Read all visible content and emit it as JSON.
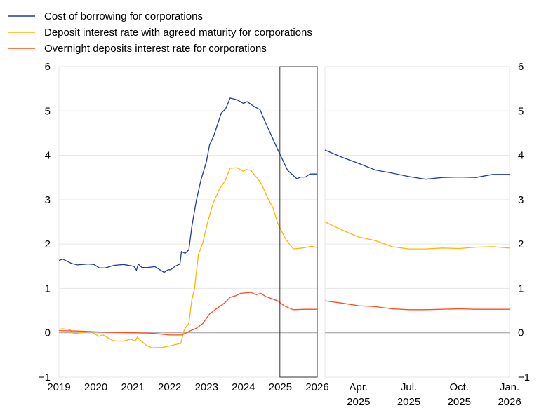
{
  "chart_data": {
    "type": "line",
    "legend_placement": "top-left",
    "colors": {
      "blue": "#1f3c9e",
      "yellow": "#ffb400",
      "red": "#ff4b1f",
      "grid": "#e6e6e6",
      "zero": "#9a9a9a"
    },
    "ylim": [
      -1,
      6
    ],
    "yticks": [
      "6",
      "5",
      "4",
      "3",
      "2",
      "1",
      "0",
      "−1"
    ],
    "ytick_values": [
      6,
      5,
      4,
      3,
      2,
      1,
      0,
      -1
    ],
    "grid": true,
    "highlight_range": [
      "2025-02",
      "2026-01"
    ],
    "left_panel": {
      "xlim": [
        2019,
        2026
      ],
      "xticks": [
        "2019",
        "2020",
        "2021",
        "2022",
        "2023",
        "2024",
        "2025",
        "2026"
      ],
      "series": [
        {
          "name": "Cost of borrowing for corporations",
          "color": "#1f3c9e",
          "x": [
            2019.0,
            2019.1,
            2019.35,
            2019.5,
            2019.8,
            2019.95,
            2020.1,
            2020.25,
            2020.5,
            2020.75,
            2021.03,
            2021.1,
            2021.15,
            2021.25,
            2021.4,
            2021.6,
            2021.85,
            2021.96,
            2022.03,
            2022.15,
            2022.28,
            2022.32,
            2022.42,
            2022.52,
            2022.6,
            2022.72,
            2022.85,
            2023.0,
            2023.08,
            2023.2,
            2023.4,
            2023.52,
            2023.64,
            2023.83,
            2024.0,
            2024.1,
            2024.27,
            2024.45,
            2024.57,
            2024.8,
            2024.93,
            2025.2,
            2025.45,
            2025.55,
            2025.68,
            2025.8,
            2026.0
          ],
          "y": [
            1.63,
            1.66,
            1.56,
            1.53,
            1.55,
            1.54,
            1.46,
            1.46,
            1.52,
            1.54,
            1.5,
            1.41,
            1.55,
            1.47,
            1.47,
            1.49,
            1.36,
            1.42,
            1.42,
            1.5,
            1.55,
            1.83,
            1.79,
            1.87,
            2.39,
            2.97,
            3.45,
            3.87,
            4.23,
            4.45,
            4.95,
            5.05,
            5.29,
            5.25,
            5.17,
            5.21,
            5.11,
            5.03,
            4.79,
            4.37,
            4.13,
            3.66,
            3.47,
            3.51,
            3.51,
            3.58,
            3.58
          ]
        },
        {
          "name": "Deposit interest rate with agreed maturity for corporations",
          "color": "#ffb400",
          "x": [
            2019.0,
            2019.1,
            2019.3,
            2019.4,
            2019.6,
            2019.85,
            2020.08,
            2020.2,
            2020.47,
            2020.75,
            2020.95,
            2021.07,
            2021.12,
            2021.38,
            2021.53,
            2021.8,
            2022.03,
            2022.18,
            2022.3,
            2022.4,
            2022.52,
            2022.6,
            2022.67,
            2022.78,
            2022.9,
            2023.03,
            2023.18,
            2023.35,
            2023.5,
            2023.64,
            2023.83,
            2024.0,
            2024.08,
            2024.2,
            2024.39,
            2024.5,
            2024.65,
            2024.8,
            2024.93,
            2025.13,
            2025.35,
            2025.6,
            2025.85,
            2026.0
          ],
          "y": [
            0.08,
            0.09,
            0.07,
            -0.02,
            0,
            0.03,
            -0.08,
            -0.05,
            -0.18,
            -0.19,
            -0.14,
            -0.19,
            -0.1,
            -0.29,
            -0.34,
            -0.33,
            -0.29,
            -0.26,
            -0.24,
            0.08,
            0.21,
            0.74,
            0.97,
            1.76,
            2.03,
            2.5,
            2.92,
            3.24,
            3.42,
            3.71,
            3.72,
            3.64,
            3.68,
            3.66,
            3.47,
            3.34,
            3.05,
            2.82,
            2.47,
            2.13,
            1.89,
            1.91,
            1.95,
            1.92
          ]
        },
        {
          "name": "Overnight deposits interest rate for corporations",
          "color": "#ff4b1f",
          "x": [
            2019.0,
            2019.5,
            2020.0,
            2020.5,
            2021.0,
            2021.5,
            2022.0,
            2022.33,
            2022.52,
            2022.72,
            2022.9,
            2023.08,
            2023.25,
            2023.5,
            2023.64,
            2023.8,
            2023.92,
            2024.2,
            2024.35,
            2024.47,
            2024.6,
            2024.93,
            2025.1,
            2025.35,
            2025.65,
            2026.0
          ],
          "y": [
            0.05,
            0.04,
            0.02,
            0.01,
            0,
            -0.01,
            -0.05,
            -0.05,
            0.03,
            0.1,
            0.21,
            0.42,
            0.53,
            0.68,
            0.8,
            0.84,
            0.89,
            0.91,
            0.86,
            0.89,
            0.82,
            0.72,
            0.61,
            0.52,
            0.53,
            0.53
          ]
        }
      ]
    },
    "right_panel": {
      "months": [
        "2025-02",
        "2025-03",
        "2025-04",
        "2025-05",
        "2025-06",
        "2025-07",
        "2025-08",
        "2025-09",
        "2025-10",
        "2025-11",
        "2025-12",
        "2026-01"
      ],
      "xticks": [
        {
          "month": "Apr.",
          "year": "2025",
          "index": 2
        },
        {
          "month": "Jul.",
          "year": "2025",
          "index": 5
        },
        {
          "month": "Oct.",
          "year": "2025",
          "index": 8
        },
        {
          "month": "Jan.",
          "year": "2026",
          "index": 11
        }
      ],
      "series": [
        {
          "name": "Cost of borrowing for corporations",
          "color": "#1f3c9e",
          "y": [
            4.12,
            3.96,
            3.82,
            3.67,
            3.6,
            3.52,
            3.46,
            3.5,
            3.51,
            3.5,
            3.57,
            3.57
          ]
        },
        {
          "name": "Deposit interest rate with agreed maturity for corporations",
          "color": "#ffb400",
          "y": [
            2.5,
            2.32,
            2.16,
            2.08,
            1.94,
            1.89,
            1.89,
            1.91,
            1.9,
            1.93,
            1.94,
            1.91
          ]
        },
        {
          "name": "Overnight deposits interest rate for corporations",
          "color": "#ff4b1f",
          "y": [
            0.72,
            0.67,
            0.61,
            0.59,
            0.54,
            0.52,
            0.52,
            0.53,
            0.54,
            0.53,
            0.53,
            0.53
          ]
        }
      ]
    },
    "legend": [
      {
        "label": "Cost of borrowing for corporations",
        "color": "#1f3c9e"
      },
      {
        "label": "Deposit interest rate with agreed maturity for corporations",
        "color": "#ffb400"
      },
      {
        "label": "Overnight deposits interest rate for corporations",
        "color": "#ff4b1f"
      }
    ]
  }
}
